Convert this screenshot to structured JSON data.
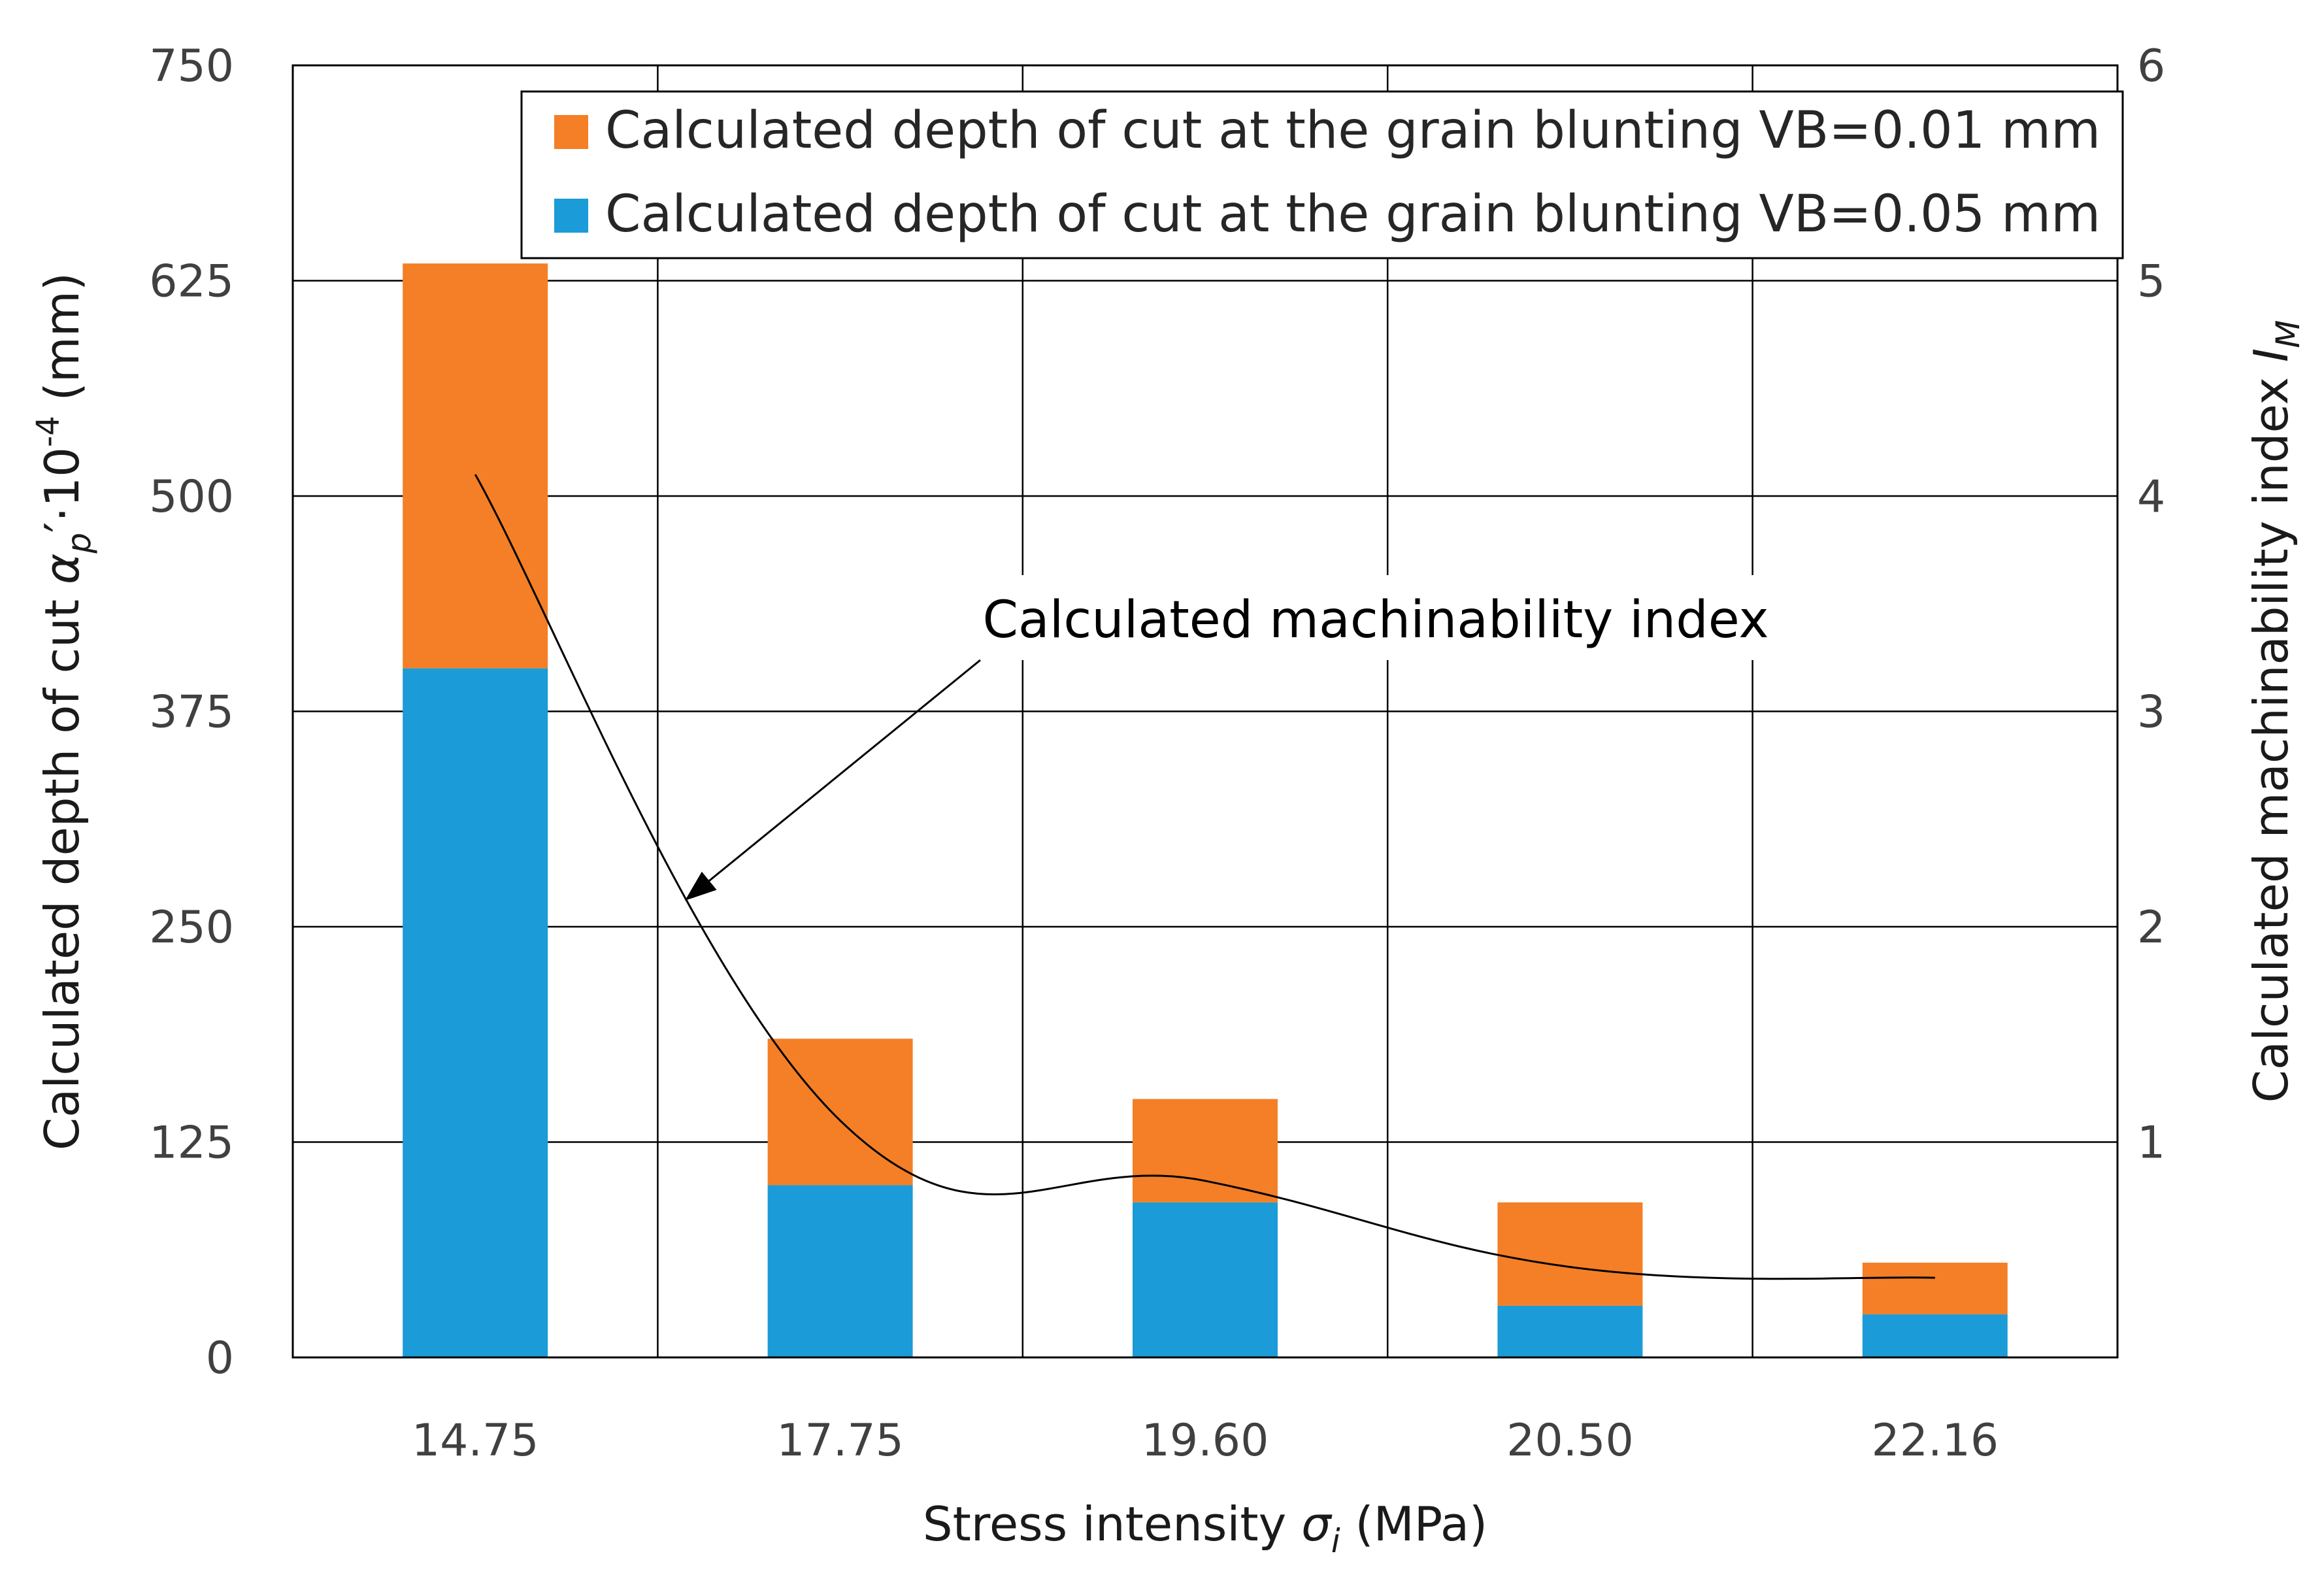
{
  "chart_data": {
    "type": "bar",
    "stacked": true,
    "categories": [
      "14.75",
      "17.75",
      "19.60",
      "20.50",
      "22.16"
    ],
    "series": [
      {
        "name": "Calculated depth of cut at the grain blunting VB=0.05 mm",
        "color": "#1b9bd7",
        "values": [
          400,
          100,
          90,
          30,
          25
        ]
      },
      {
        "name": "Calculated depth of cut at the grain blunting VB=0.01 mm",
        "color": "#f47f26",
        "values": [
          235,
          85,
          60,
          60,
          30
        ]
      }
    ],
    "line_series": {
      "name": "Calculated machinability index",
      "axis": "right",
      "values": [
        4.1,
        1.1,
        0.82,
        0.42,
        0.37
      ]
    },
    "annotation": "Calculated machinability index",
    "xlabel": {
      "main": "Stress intensity ",
      "symbol": "σ",
      "subscript": "i",
      "unit": " (MPa)"
    },
    "ylabel": {
      "main": "Calculated depth of cut  ",
      "symbol": "α",
      "subscript": "p",
      "middle": "′·10",
      "superscript": "-4",
      "unit": " (mm)"
    },
    "y2label": {
      "main": "Calculated machinability index ",
      "symbol": "I",
      "subscript": "M"
    },
    "ylim": [
      0,
      750
    ],
    "yticks": [
      "0",
      "125",
      "250",
      "375",
      "500",
      "625",
      "750"
    ],
    "y2lim": [
      0,
      6
    ],
    "y2ticks": [
      "1",
      "2",
      "3",
      "4",
      "5",
      "6"
    ],
    "legend": {
      "position": "top-right",
      "order": [
        1,
        0
      ]
    },
    "grid": true
  }
}
